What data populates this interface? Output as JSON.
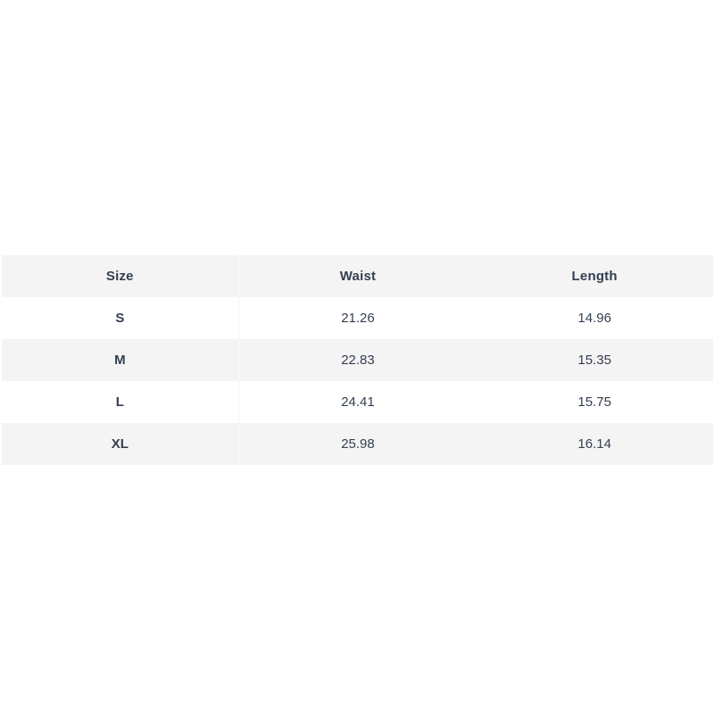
{
  "size_chart": {
    "columns": [
      {
        "label": "Size"
      },
      {
        "label": "Waist"
      },
      {
        "label": "Length"
      }
    ],
    "rows": [
      {
        "size": "S",
        "waist": "21.26",
        "length": "14.96"
      },
      {
        "size": "M",
        "waist": "22.83",
        "length": "15.35"
      },
      {
        "size": "L",
        "waist": "24.41",
        "length": "15.75"
      },
      {
        "size": "XL",
        "waist": "25.98",
        "length": "16.14"
      }
    ],
    "colors": {
      "stripe_background": "#f4f4f4",
      "row_background": "#ffffff",
      "text": "#343e51",
      "column_divider": "#f9f9f9"
    }
  }
}
